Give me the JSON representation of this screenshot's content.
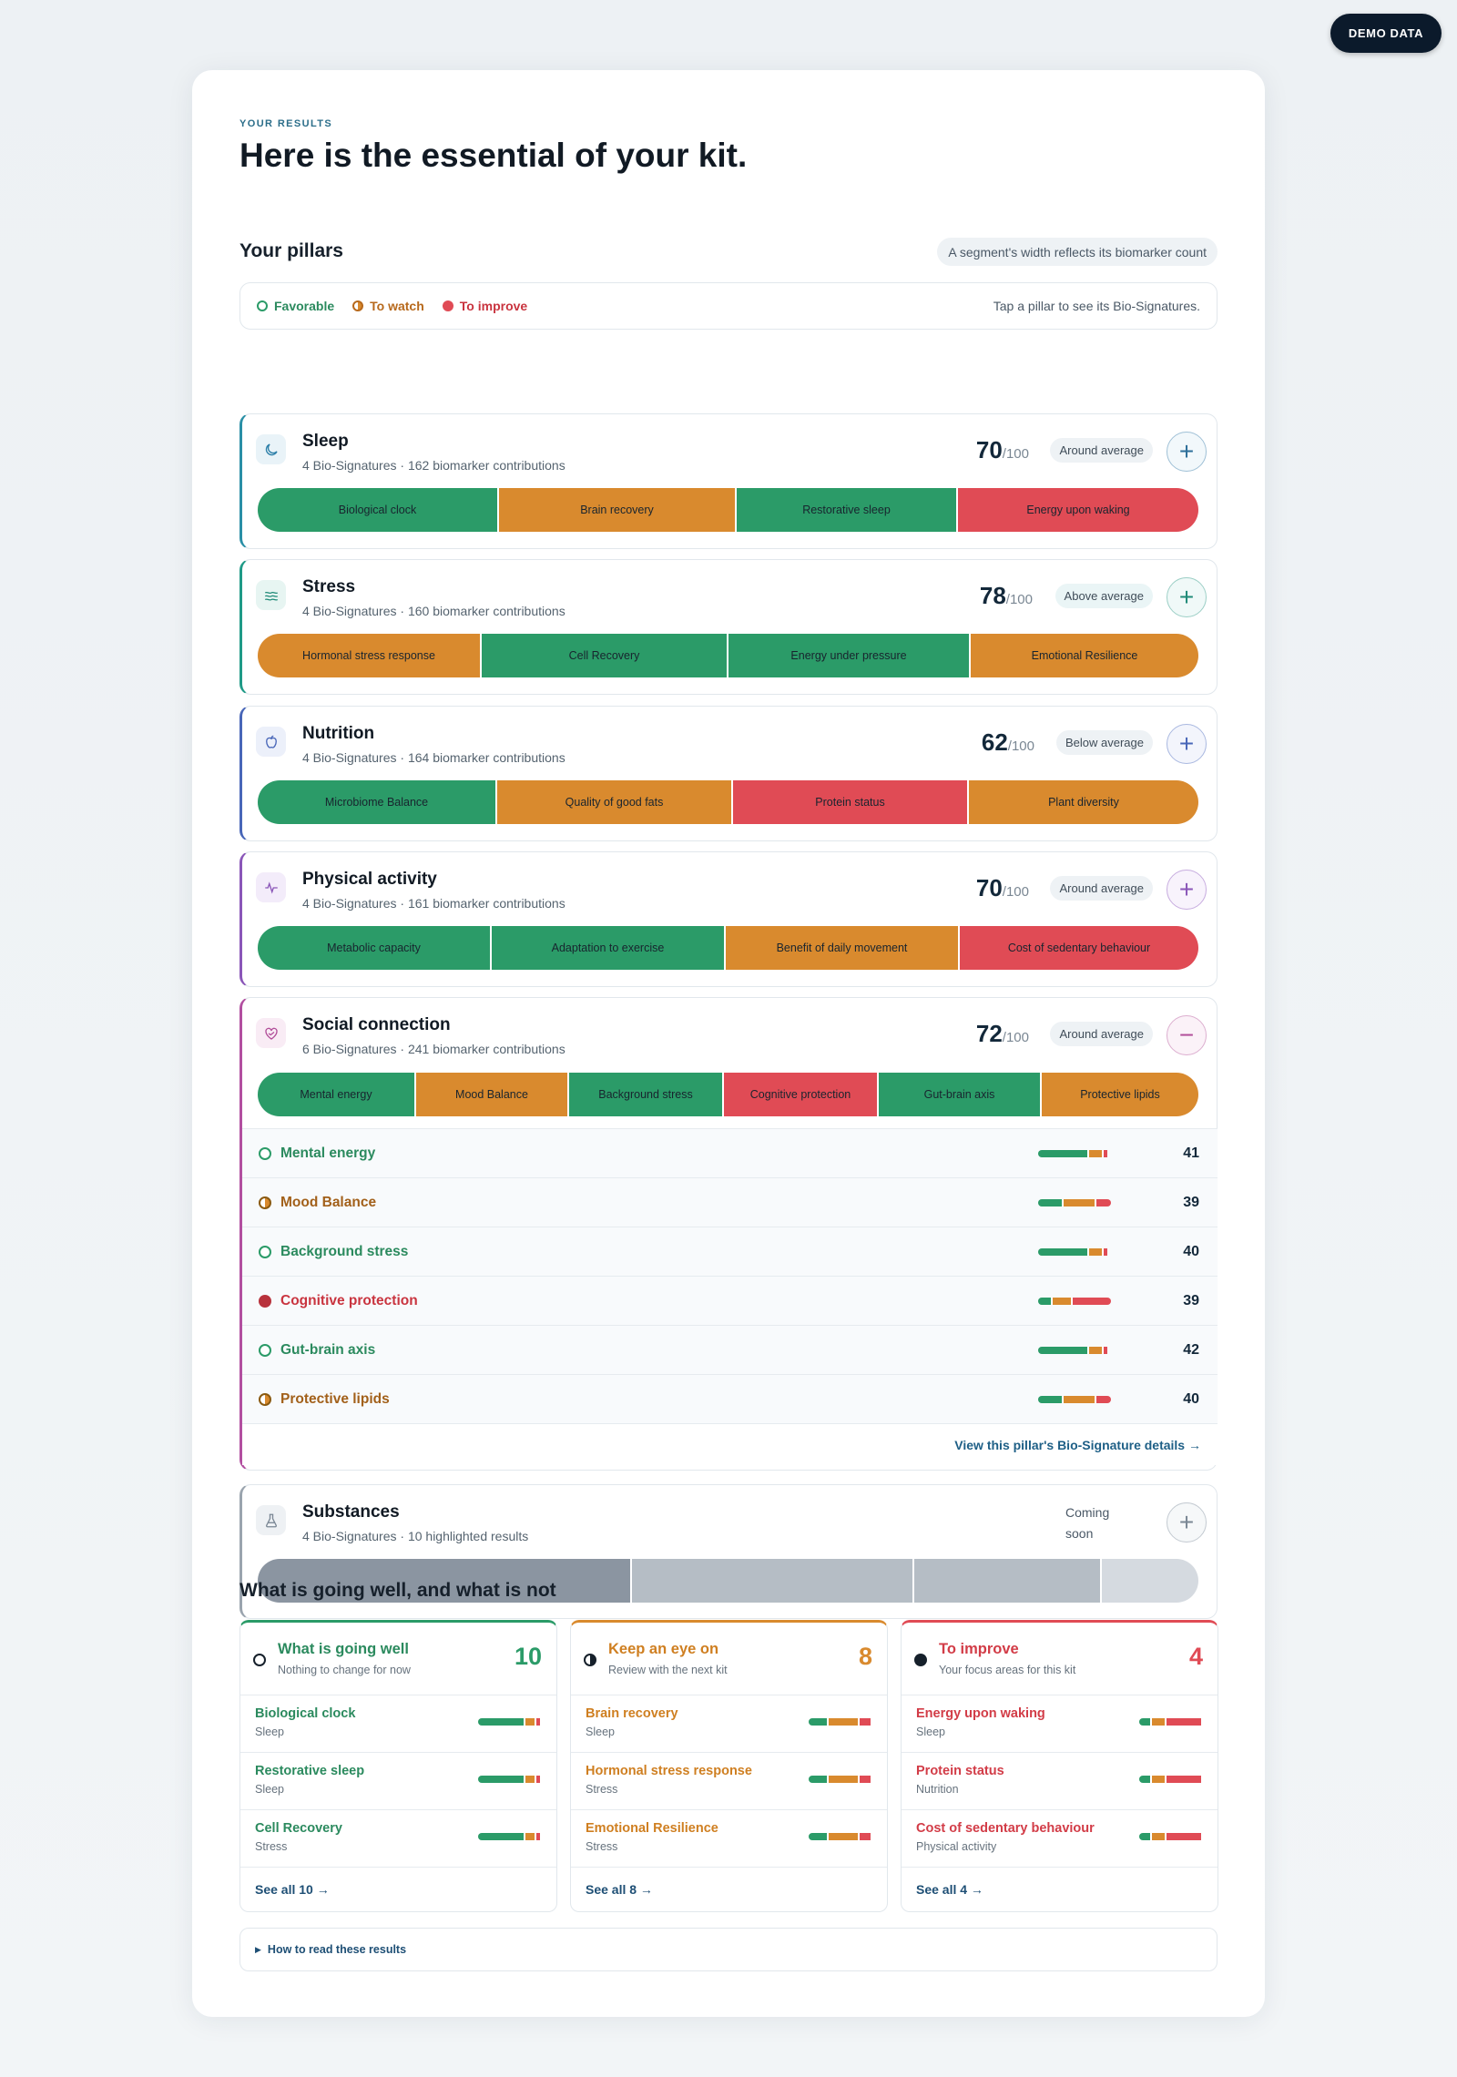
{
  "demo_badge": "DEMO DATA",
  "eyebrow": "YOUR RESULTS",
  "hero_title": "Here is the essential of your kit.",
  "pillars_title": "Your pillars",
  "segment_hint": "A segment's width reflects its biomarker count",
  "legend": {
    "favorable": "Favorable",
    "to_watch": "To watch",
    "to_improve": "To improve",
    "tap_hint": "Tap a pillar to see its Bio-Signatures."
  },
  "colors": {
    "green": "#2b9b68",
    "orange": "#d98a2e",
    "red": "#e04b55",
    "gray": "#8b95a1"
  },
  "pillars": [
    {
      "name": "Sleep",
      "subtitle": "4 Bio-Signatures · 162 biomarker contributions",
      "score": "70",
      "of": "/100",
      "chip": "Around average",
      "icon": "moon-icon",
      "toggle": "+",
      "segments": [
        {
          "label": "Biological clock",
          "status": "favorable"
        },
        {
          "label": "Brain recovery",
          "status": "watch"
        },
        {
          "label": "Restorative sleep",
          "status": "favorable"
        },
        {
          "label": "Energy upon waking",
          "status": "improve"
        }
      ]
    },
    {
      "name": "Stress",
      "subtitle": "4 Bio-Signatures · 160 biomarker contributions",
      "score": "78",
      "of": "/100",
      "chip": "Above average",
      "icon": "waves-icon",
      "toggle": "+",
      "segments": [
        {
          "label": "Hormonal stress response",
          "status": "watch"
        },
        {
          "label": "Cell Recovery",
          "status": "favorable"
        },
        {
          "label": "Energy under pressure",
          "status": "favorable"
        },
        {
          "label": "Emotional Resilience",
          "status": "watch"
        }
      ]
    },
    {
      "name": "Nutrition",
      "subtitle": "4 Bio-Signatures · 164 biomarker contributions",
      "score": "62",
      "of": "/100",
      "chip": "Below average",
      "icon": "apple-icon",
      "toggle": "+",
      "segments": [
        {
          "label": "Microbiome Balance",
          "status": "favorable"
        },
        {
          "label": "Quality of good fats",
          "status": "watch"
        },
        {
          "label": "Protein status",
          "status": "improve"
        },
        {
          "label": "Plant diversity",
          "status": "watch"
        }
      ]
    },
    {
      "name": "Physical activity",
      "subtitle": "4 Bio-Signatures · 161 biomarker contributions",
      "score": "70",
      "of": "/100",
      "chip": "Around average",
      "icon": "pulse-icon",
      "toggle": "+",
      "segments": [
        {
          "label": "Metabolic capacity",
          "status": "favorable"
        },
        {
          "label": "Adaptation to exercise",
          "status": "favorable"
        },
        {
          "label": "Benefit of daily movement",
          "status": "watch"
        },
        {
          "label": "Cost of sedentary behaviour",
          "status": "improve"
        }
      ]
    },
    {
      "name": "Social connection",
      "subtitle": "6 Bio-Signatures · 241 biomarker contributions",
      "score": "72",
      "of": "/100",
      "chip": "Around average",
      "icon": "heart-hands-icon",
      "toggle": "−",
      "segments": [
        {
          "label": "Mental energy",
          "status": "favorable"
        },
        {
          "label": "Mood Balance",
          "status": "watch"
        },
        {
          "label": "Background stress",
          "status": "favorable"
        },
        {
          "label": "Cognitive protection",
          "status": "improve"
        },
        {
          "label": "Gut-brain axis",
          "status": "favorable"
        },
        {
          "label": "Protective lipids",
          "status": "watch"
        }
      ],
      "details": [
        {
          "label": "Mental energy",
          "status": "favorable",
          "value": "41"
        },
        {
          "label": "Mood Balance",
          "status": "watch",
          "value": "39"
        },
        {
          "label": "Background stress",
          "status": "favorable",
          "value": "40"
        },
        {
          "label": "Cognitive protection",
          "status": "improve",
          "value": "39"
        },
        {
          "label": "Gut-brain axis",
          "status": "favorable",
          "value": "42"
        },
        {
          "label": "Protective lipids",
          "status": "watch",
          "value": "40"
        }
      ],
      "details_link": "View this pillar's Bio-Signature details →"
    }
  ],
  "substances": {
    "name": "Substances",
    "subtitle": "4 Bio-Signatures · 10 highlighted results",
    "coming": "Coming soon",
    "icon": "flask-icon",
    "toggle": "+"
  },
  "summary_title": "What is going well, and what is not",
  "summary": [
    {
      "title": "What is going well",
      "subtitle": "Nothing to change for now",
      "count": "10",
      "tone": "favorable",
      "see_all": "See all 10 →",
      "items": [
        {
          "name": "Biological clock",
          "pillar": "Sleep"
        },
        {
          "name": "Restorative sleep",
          "pillar": "Sleep"
        },
        {
          "name": "Cell Recovery",
          "pillar": "Stress"
        }
      ]
    },
    {
      "title": "Keep an eye on",
      "subtitle": "Review with the next kit",
      "count": "8",
      "tone": "watch",
      "see_all": "See all 8 →",
      "items": [
        {
          "name": "Brain recovery",
          "pillar": "Sleep"
        },
        {
          "name": "Hormonal stress response",
          "pillar": "Stress"
        },
        {
          "name": "Emotional Resilience",
          "pillar": "Stress"
        }
      ]
    },
    {
      "title": "To improve",
      "subtitle": "Your focus areas for this kit",
      "count": "4",
      "tone": "improve",
      "see_all": "See all 4 →",
      "items": [
        {
          "name": "Energy upon waking",
          "pillar": "Sleep"
        },
        {
          "name": "Protein status",
          "pillar": "Nutrition"
        },
        {
          "name": "Cost of sedentary behaviour",
          "pillar": "Physical activity"
        }
      ]
    }
  ],
  "how_to_read": "How to read these results"
}
